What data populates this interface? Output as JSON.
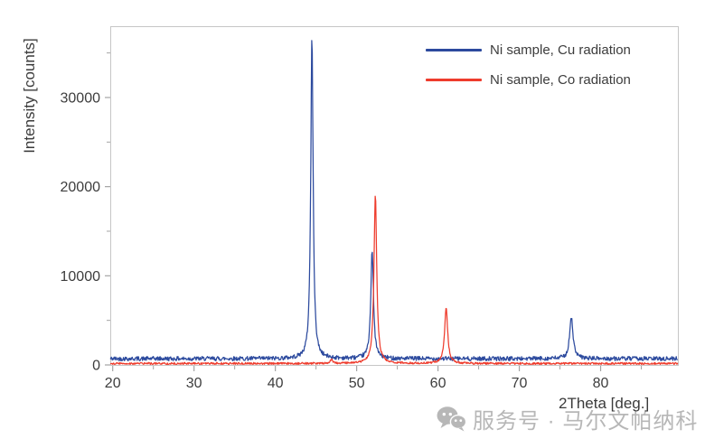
{
  "watermark": {
    "icon": "wechat-icon",
    "text": "服务号 · 马尔文帕纳科",
    "color": "#b7b7b7"
  },
  "chart_data": {
    "type": "line",
    "title": "",
    "xlabel": "2Theta [deg.]",
    "ylabel": "Intensity [counts]",
    "xlim": [
      19.7,
      89.5
    ],
    "ylim": [
      0,
      38000
    ],
    "x_ticks_major": [
      20,
      30,
      40,
      50,
      60,
      70,
      80
    ],
    "x_ticks_minor": [
      25,
      35,
      45,
      55,
      65,
      75,
      85
    ],
    "y_ticks_major": [
      0,
      10000,
      20000,
      30000
    ],
    "y_ticks_minor": [
      5000,
      15000,
      25000,
      35000
    ],
    "grid": false,
    "legend_position": "top-right-inside",
    "axis_color": "#c6c6c6",
    "tick_color": "#a4a4a4",
    "tick_label_color": "#3d3d3d",
    "series": [
      {
        "name": "Ni sample, Cu radiation",
        "color": "#2c4a9e",
        "baseline_counts": 700,
        "noise_counts": 240,
        "peaks": [
          {
            "two_theta": 44.5,
            "intensity": 36100,
            "fwhm": 0.35
          },
          {
            "two_theta": 51.9,
            "intensity": 12100,
            "fwhm": 0.4
          },
          {
            "two_theta": 76.4,
            "intensity": 4600,
            "fwhm": 0.5
          }
        ]
      },
      {
        "name": "Ni sample, Co radiation",
        "color": "#ee3c2d",
        "baseline_counts": 160,
        "noise_counts": 110,
        "peaks": [
          {
            "two_theta": 46.9,
            "intensity": 450,
            "fwhm": 0.4
          },
          {
            "two_theta": 52.3,
            "intensity": 18900,
            "fwhm": 0.4
          },
          {
            "two_theta": 61.0,
            "intensity": 6300,
            "fwhm": 0.45
          }
        ]
      }
    ]
  }
}
